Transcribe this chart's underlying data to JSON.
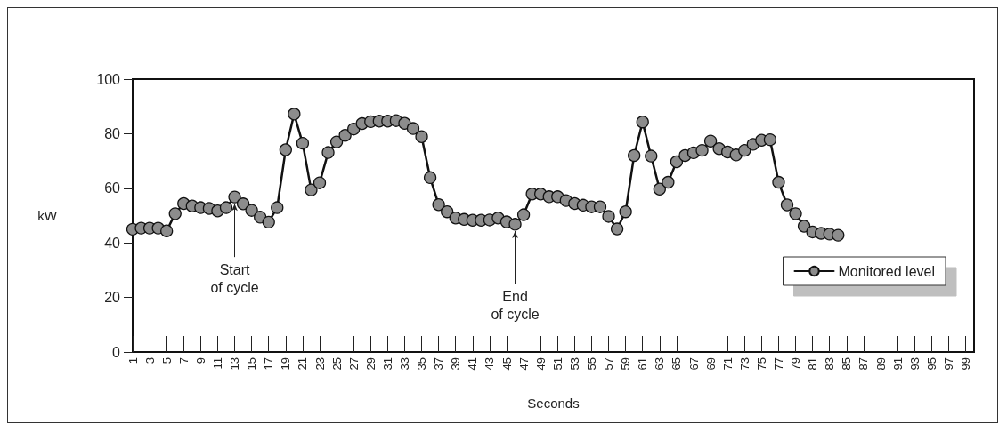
{
  "chart_data": {
    "type": "line",
    "xlabel": "Seconds",
    "ylabel": "kW",
    "categories": [
      "1",
      null,
      "3",
      null,
      "5",
      null,
      "7",
      null,
      "9",
      null,
      "11",
      null,
      "13",
      null,
      "15",
      null,
      "17",
      null,
      "19",
      null,
      "21",
      null,
      "23",
      null,
      "25",
      null,
      "27",
      null,
      "29",
      null,
      "31",
      null,
      "33",
      null,
      "35",
      null,
      "37",
      null,
      "39",
      null,
      "41",
      null,
      "43",
      null,
      "45",
      null,
      "47",
      null,
      "49",
      null,
      "51",
      null,
      "53",
      null,
      "55",
      null,
      "57",
      null,
      "59",
      null,
      "61",
      null,
      "63",
      null,
      "65",
      null,
      "67",
      null,
      "69",
      null,
      "71",
      null,
      "73",
      null,
      "75",
      null,
      "77",
      null,
      "79",
      null,
      "81",
      null,
      "83",
      null,
      "85",
      null,
      "87",
      null,
      "89",
      null,
      "91",
      null,
      "93",
      null,
      "95",
      null,
      "97",
      null,
      "99",
      null
    ],
    "series": [
      {
        "name": "Monitored level",
        "color": "#8c8c8c",
        "values": [
          45,
          45.4,
          45.4,
          45.4,
          44.4,
          50.7,
          54.4,
          53.5,
          52.9,
          52.6,
          51.7,
          52.9,
          56.8,
          54.3,
          51.9,
          49.4,
          47.6,
          52.9,
          74.1,
          87.2,
          76.5,
          59.4,
          62,
          73.1,
          77,
          79.4,
          81.7,
          83.7,
          84.4,
          84.6,
          84.6,
          84.8,
          83.8,
          81.9,
          78.9,
          63.9,
          54,
          51.4,
          49.1,
          48.6,
          48.3,
          48.3,
          48.4,
          49.1,
          47.7,
          46.8,
          50.3,
          57.9,
          57.9,
          56.9,
          56.9,
          55.5,
          54.4,
          53.8,
          53.2,
          53.2,
          49.7,
          45.1,
          51.4,
          72,
          84.3,
          71.8,
          59.7,
          62.2,
          69.7,
          72,
          73,
          73.9,
          77.3,
          74.5,
          73.3,
          72.2,
          73.9,
          76.1,
          77.6,
          77.8,
          62.2,
          53.9,
          50.7,
          46.1,
          44,
          43.5,
          43.2,
          42.8,
          null,
          null,
          null,
          null,
          null,
          null,
          null,
          null,
          null,
          null,
          null,
          null,
          null,
          null,
          null,
          null
        ]
      }
    ],
    "ylim": [
      0,
      100
    ],
    "yticks": [
      0,
      20,
      40,
      60,
      80,
      100
    ],
    "grid": false,
    "legend": "right",
    "marker": "circle",
    "line_style": "solid",
    "annotations": [
      {
        "text": "Start of cycle",
        "x": "13",
        "y": 56.8
      },
      {
        "text": "End of cycle",
        "y": 46.8
      }
    ]
  }
}
